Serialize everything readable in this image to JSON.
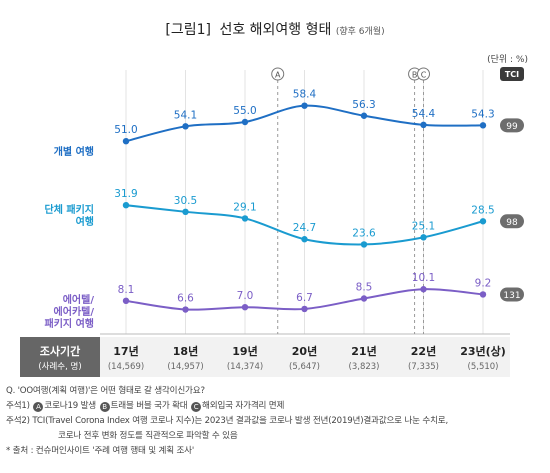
{
  "chart_data": {
    "type": "line",
    "title_prefix": "[그림1]",
    "title": "선호 해외여행 형태",
    "title_suffix": "(향후 6개월)",
    "unit": "(단위 : %)",
    "tci_header": "TCI",
    "categories": [
      "17년",
      "18년",
      "19년",
      "20년",
      "21년",
      "22년",
      "23년(상)"
    ],
    "sample_sizes": [
      "(14,569)",
      "(14,957)",
      "(14,374)",
      "(5,647)",
      "(3,823)",
      "(7,335)",
      "(5,510)"
    ],
    "period_label": "조사기간",
    "period_sub": "(사례수, 명)",
    "series": [
      {
        "name": "개별 여행",
        "name_lines": [
          "개별 여행"
        ],
        "color": "#1f6fc4",
        "values": [
          51.0,
          54.1,
          55.0,
          58.4,
          56.3,
          54.4,
          54.3
        ],
        "tci": "99"
      },
      {
        "name": "단체 패키지 여행",
        "name_lines": [
          "단체 패키지",
          "여행"
        ],
        "color": "#1a9bd0",
        "values": [
          31.9,
          30.5,
          29.1,
          24.7,
          23.6,
          25.1,
          28.5
        ],
        "tci": "98"
      },
      {
        "name": "에어텔/에어카텔/패키지 여행",
        "name_lines": [
          "에어텔/",
          "에어카텔/",
          "패키지 여행"
        ],
        "color": "#7b5ec6",
        "values": [
          8.1,
          6.6,
          7.0,
          6.7,
          8.5,
          10.1,
          9.2
        ],
        "tci": "131"
      }
    ],
    "markers": [
      {
        "label": "A",
        "position": 2.55
      },
      {
        "label": "B",
        "position": 4.85
      },
      {
        "label": "C",
        "position": 5.0
      }
    ]
  },
  "notes": {
    "q": "Q. 'OO여행(계획 여행)'은 어떤 형태로 갈 생각이신가요?",
    "n1_prefix": "주석1)",
    "n1_a": "코로나19 발생",
    "n1_b": "트래블 버블 국가 확대",
    "n1_c": "해외입국 자가격리 면제",
    "n2_prefix": "주석2)",
    "n2_line1": "TCI(Travel Corona Index 여행 코로나 지수)는 2023년 결과값을 코로나 발생 전년(2019년)결과값으로 나눈 수치로,",
    "n2_line2": "코로나 전후 변화 정도를 직관적으로 파악할 수 있음",
    "source": "* 출처 : 컨슈머인사이트 '주례 여행 행태 및 계획 조사'"
  }
}
